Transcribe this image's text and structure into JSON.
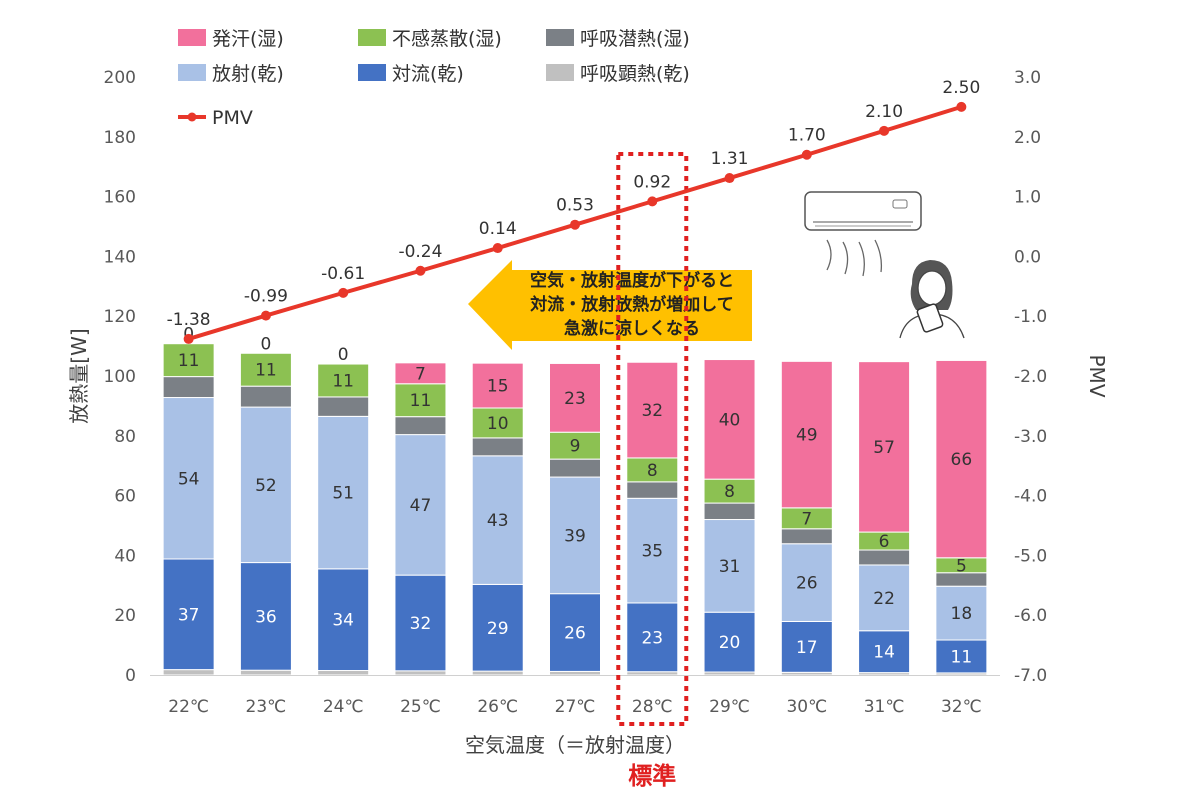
{
  "chart_data": {
    "type": "bar",
    "stacked": true,
    "categories": [
      "22℃",
      "23℃",
      "24℃",
      "25℃",
      "26℃",
      "27℃",
      "28℃",
      "29℃",
      "30℃",
      "31℃",
      "32℃"
    ],
    "xlabel": "空気温度（＝放射温度）",
    "ylabel": "放熱量[W]",
    "y2label": "PMV",
    "ylim": [
      0,
      200
    ],
    "yticks": [
      0,
      20,
      40,
      60,
      80,
      100,
      120,
      140,
      160,
      180,
      200
    ],
    "y2lim": [
      -7.0,
      3.0
    ],
    "y2ticks": [
      "-7.0",
      "-6.0",
      "-5.0",
      "-4.0",
      "-3.0",
      "-2.0",
      "-1.0",
      "0.0",
      "1.0",
      "2.0",
      "3.0"
    ],
    "grid": false,
    "legend_position": "top-left",
    "legend": [
      {
        "name": "発汗(湿)",
        "color": "#f2709c"
      },
      {
        "name": "不感蒸散(湿)",
        "color": "#8cc152"
      },
      {
        "name": "呼吸潜熱(湿)",
        "color": "#7b8086"
      },
      {
        "name": "放射(乾)",
        "color": "#a9c1e6"
      },
      {
        "name": "対流(乾)",
        "color": "#4472c4"
      },
      {
        "name": "呼吸顕熱(乾)",
        "color": "#c0c0c0"
      },
      {
        "name": "PMV",
        "color": "#e8372a"
      }
    ],
    "series": [
      {
        "name": "呼吸顕熱(乾)",
        "color": "#c0c0c0",
        "values": [
          1.8,
          1.6,
          1.5,
          1.4,
          1.3,
          1.2,
          1.1,
          1.0,
          0.9,
          0.8,
          0.7
        ],
        "labels": [
          "",
          "",
          "",
          "",
          "",
          "",
          "",
          "",
          "",
          "",
          ""
        ],
        "label_color": "#333333"
      },
      {
        "name": "対流(乾)",
        "color": "#4472c4",
        "values": [
          37,
          36,
          34,
          32,
          29,
          26,
          23,
          20,
          17,
          14,
          11
        ],
        "labels": [
          "37",
          "36",
          "34",
          "32",
          "29",
          "26",
          "23",
          "20",
          "17",
          "14",
          "11"
        ],
        "label_color": "#ffffff"
      },
      {
        "name": "放射(乾)",
        "color": "#a9c1e6",
        "values": [
          54,
          52,
          51,
          47,
          43,
          39,
          35,
          31,
          26,
          22,
          18
        ],
        "labels": [
          "54",
          "52",
          "51",
          "47",
          "43",
          "39",
          "35",
          "31",
          "26",
          "22",
          "18"
        ],
        "label_color": "#333333"
      },
      {
        "name": "呼吸潜熱(湿)",
        "color": "#7b8086",
        "values": [
          7,
          7,
          6.5,
          6,
          6,
          6,
          5.5,
          5.5,
          5,
          5,
          4.5
        ],
        "labels": [
          "",
          "",
          "",
          "",
          "",
          "",
          "",
          "",
          "",
          "",
          ""
        ],
        "label_color": "#333333"
      },
      {
        "name": "不感蒸散(湿)",
        "color": "#8cc152",
        "values": [
          11,
          11,
          11,
          11,
          10,
          9,
          8,
          8,
          7,
          6,
          5
        ],
        "labels": [
          "11",
          "11",
          "11",
          "11",
          "10",
          "9",
          "8",
          "8",
          "7",
          "6",
          "5"
        ],
        "label_color": "#333333"
      },
      {
        "name": "発汗(湿)",
        "color": "#f2709c",
        "values": [
          0,
          0,
          0,
          7,
          15,
          23,
          32,
          40,
          49,
          57,
          66
        ],
        "labels": [
          "0",
          "0",
          "0",
          "7",
          "15",
          "23",
          "32",
          "40",
          "49",
          "57",
          "66"
        ],
        "label_color": "#333333"
      }
    ],
    "pmv": {
      "name": "PMV",
      "color": "#e8372a",
      "values": [
        -1.38,
        -0.99,
        -0.61,
        -0.24,
        0.14,
        0.53,
        0.92,
        1.31,
        1.7,
        2.1,
        2.5
      ],
      "labels": [
        "-1.38",
        "-0.99",
        "-0.61",
        "-0.24",
        "0.14",
        "0.53",
        "0.92",
        "1.31",
        "1.70",
        "2.10",
        "2.50"
      ]
    },
    "annotations": {
      "callout_lines": [
        "空気・放射温度が下がると",
        "対流・放射放熱が増加して",
        "急激に涼しくなる"
      ],
      "callout_color": "#ffc000",
      "highlight_category": "28℃",
      "highlight_color": "#e02020",
      "highlight_label": "標準"
    },
    "icons": [
      "air-conditioner-icon",
      "person-fanning-icon"
    ]
  }
}
